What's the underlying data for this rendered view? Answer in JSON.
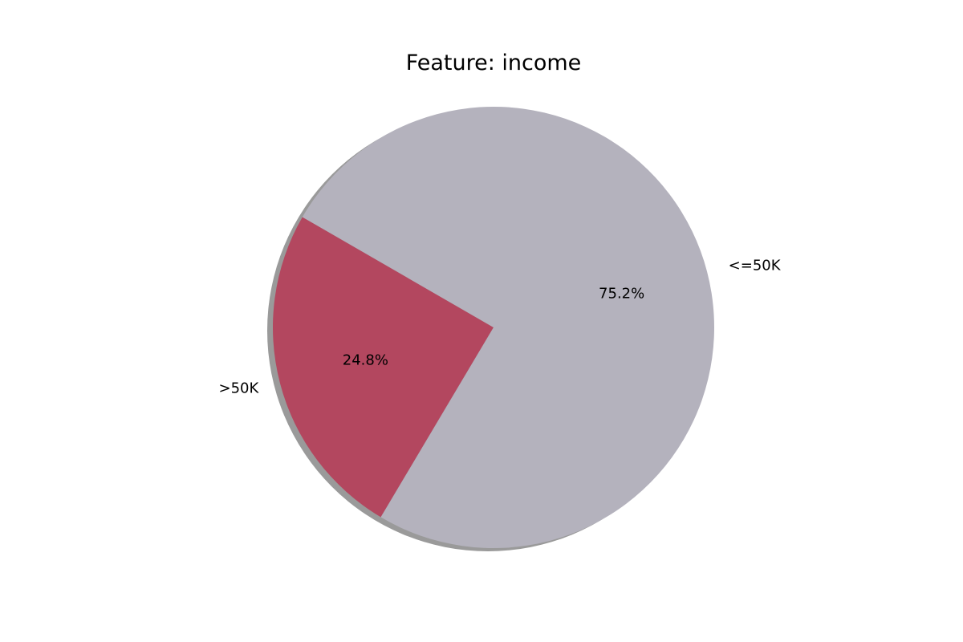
{
  "chart_data": {
    "type": "pie",
    "title": "Feature: income",
    "start_angle_deg": 150,
    "shadow": true,
    "slices": [
      {
        "label": ">50K",
        "value": 24.8,
        "pct_label": "24.8%",
        "color": "#b3475f"
      },
      {
        "label": "<=50K",
        "value": 75.2,
        "pct_label": "75.2%",
        "color": "#b4b2bd"
      }
    ]
  }
}
